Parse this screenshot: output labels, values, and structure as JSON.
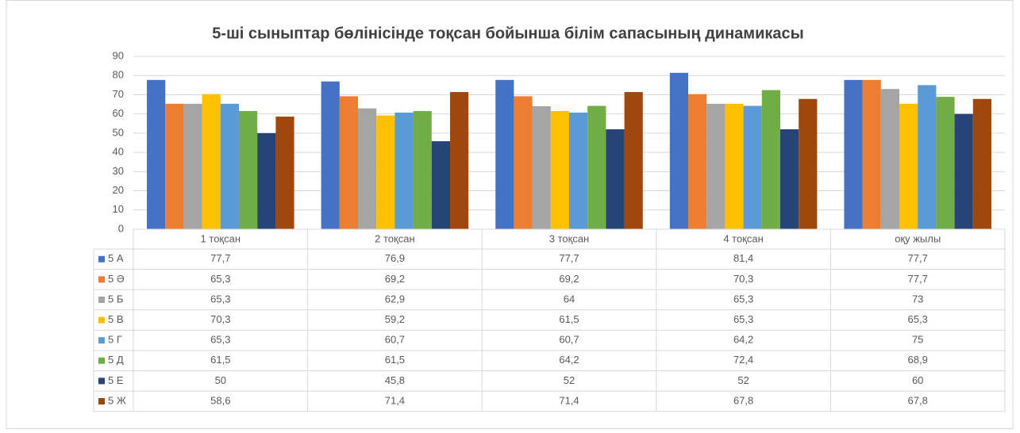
{
  "chart_data": {
    "type": "bar",
    "title": "5-ші сыныптар бөлінісінде тоқсан бойынша білім сапасының динамикасы",
    "categories": [
      "1 тоқсан",
      "2 тоқсан",
      "3 тоқсан",
      "4 тоқсан",
      "оқу жылы"
    ],
    "series": [
      {
        "name": "5 А",
        "color": "#4472c4",
        "values": [
          77.7,
          76.9,
          77.7,
          81.4,
          77.7
        ],
        "value_labels": [
          "77,7",
          "76,9",
          "77,7",
          "81,4",
          "77,7"
        ]
      },
      {
        "name": "5 Ә",
        "color": "#ed7d31",
        "values": [
          65.3,
          69.2,
          69.2,
          70.3,
          77.7
        ],
        "value_labels": [
          "65,3",
          "69,2",
          "69,2",
          "70,3",
          "77,7"
        ]
      },
      {
        "name": "5 Б",
        "color": "#a5a5a5",
        "values": [
          65.3,
          62.9,
          64,
          65.3,
          73
        ],
        "value_labels": [
          "65,3",
          "62,9",
          "64",
          "65,3",
          "73"
        ]
      },
      {
        "name": "5 В",
        "color": "#ffc000",
        "values": [
          70.3,
          59.2,
          61.5,
          65.3,
          65.3
        ],
        "value_labels": [
          "70,3",
          "59,2",
          "61,5",
          "65,3",
          "65,3"
        ]
      },
      {
        "name": "5 Г",
        "color": "#5b9bd5",
        "values": [
          65.3,
          60.7,
          60.7,
          64.2,
          75
        ],
        "value_labels": [
          "65,3",
          "60,7",
          "60,7",
          "64,2",
          "75"
        ]
      },
      {
        "name": "5 Д",
        "color": "#70ad47",
        "values": [
          61.5,
          61.5,
          64.2,
          72.4,
          68.9
        ],
        "value_labels": [
          "61,5",
          "61,5",
          "64,2",
          "72,4",
          "68,9"
        ]
      },
      {
        "name": "5 Е",
        "color": "#264478",
        "values": [
          50,
          45.8,
          52,
          52,
          60
        ],
        "value_labels": [
          "50",
          "45,8",
          "52",
          "52",
          "60"
        ]
      },
      {
        "name": "5 Ж",
        "color": "#9e480e",
        "values": [
          58.6,
          71.4,
          71.4,
          67.8,
          67.8
        ],
        "value_labels": [
          "58,6",
          "71,4",
          "71,4",
          "67,8",
          "67,8"
        ]
      }
    ],
    "ylim": [
      0,
      90
    ],
    "yticks": [
      0,
      10,
      20,
      30,
      40,
      50,
      60,
      70,
      80,
      90
    ],
    "grid": true
  }
}
